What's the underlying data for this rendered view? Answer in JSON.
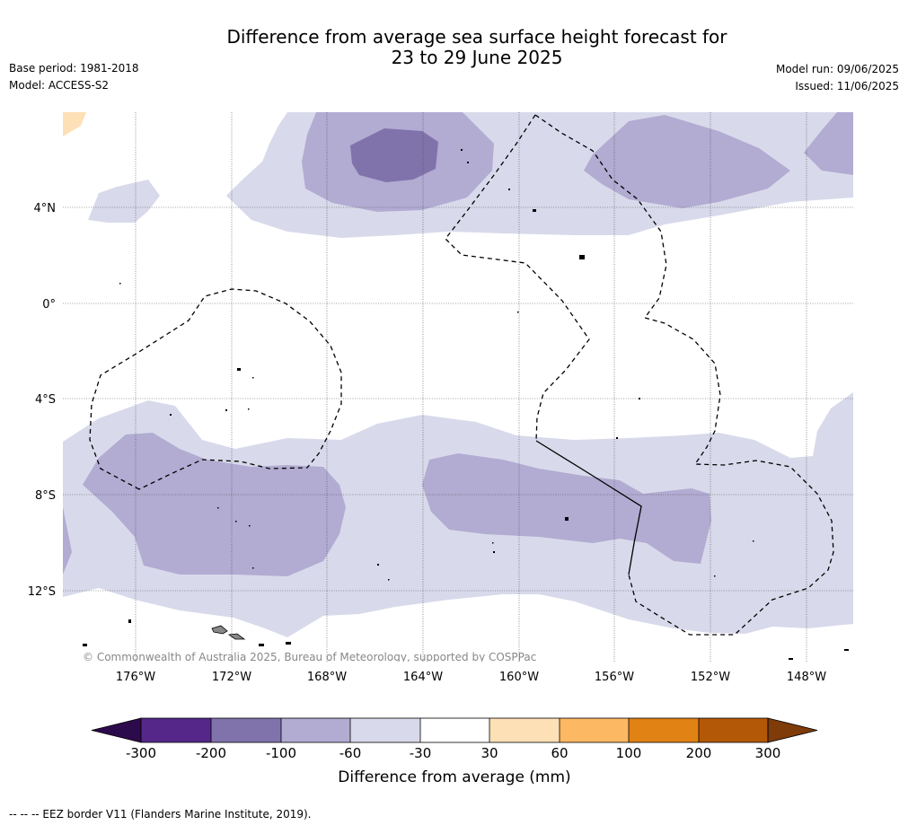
{
  "title_line1": "Difference from average sea surface height forecast for",
  "title_line2": "23 to 29 June 2025",
  "base_period": "Base period: 1981-2018",
  "model": "Model: ACCESS-S2",
  "model_run": "Model run: 09/06/2025",
  "issued": "Issued: 11/06/2025",
  "credit": "© Commonwealth of Australia 2025, Bureau of Meteorology, supported by COSPPac",
  "footnote": "--  --  -- EEZ border V11 (Flanders Marine Institute, 2019).",
  "lat_labels": [
    "4°N",
    "0°",
    "4°S",
    "8°S",
    "12°S"
  ],
  "lon_labels": [
    "176°W",
    "172°W",
    "168°W",
    "164°W",
    "160°W",
    "156°W",
    "152°W",
    "148°W"
  ],
  "colorbar": {
    "title": "Difference from average (mm)",
    "ticks": [
      "-300",
      "-200",
      "-100",
      "-60",
      "-30",
      "30",
      "60",
      "100",
      "200",
      "300"
    ],
    "colors": {
      "below_min": "#2d0a4b",
      "minus300_200": "#542788",
      "minus200_100": "#8073ac",
      "minus100_60": "#b2abd2",
      "minus60_30": "#d8daeb",
      "minus30_30": "#ffffff",
      "p30_60": "#fee0b6",
      "p60_100": "#fdb863",
      "p100_200": "#e08214",
      "p200_300": "#b35806",
      "above_max": "#7f3b08"
    }
  }
}
